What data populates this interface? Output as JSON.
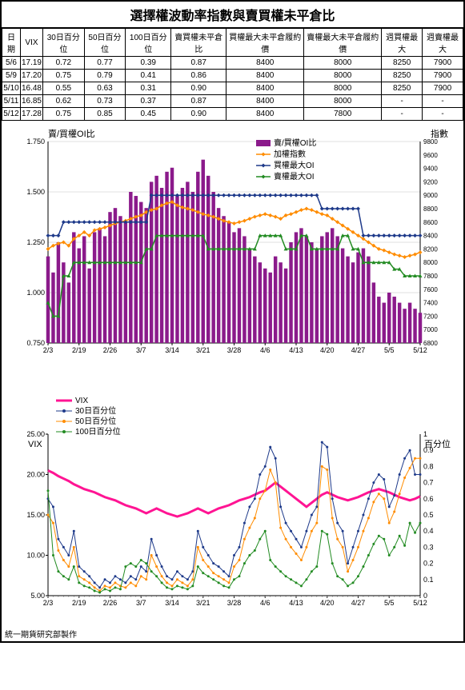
{
  "title": "選擇權波動率指數與賣買權未平倉比",
  "table": {
    "columns": [
      "日期",
      "VIX",
      "30日百分位",
      "50日百分位",
      "100日百分位",
      "賣買權未平倉比",
      "買權最大未平倉履約價",
      "賣權最大未平倉履約價",
      "週買權最大",
      "週賣權最大"
    ],
    "rows": [
      [
        "5/6",
        "17.19",
        "0.72",
        "0.77",
        "0.39",
        "0.87",
        "8400",
        "8000",
        "8250",
        "7900"
      ],
      [
        "5/9",
        "17.20",
        "0.75",
        "0.79",
        "0.41",
        "0.86",
        "8400",
        "8000",
        "8250",
        "7900"
      ],
      [
        "5/10",
        "16.48",
        "0.55",
        "0.63",
        "0.31",
        "0.90",
        "8400",
        "8000",
        "8250",
        "7900"
      ],
      [
        "5/11",
        "16.85",
        "0.62",
        "0.73",
        "0.37",
        "0.87",
        "8400",
        "8000",
        "-",
        "-"
      ],
      [
        "5/12",
        "17.28",
        "0.75",
        "0.85",
        "0.45",
        "0.90",
        "8400",
        "7800",
        "-",
        "-"
      ]
    ]
  },
  "chart1": {
    "type": "combo",
    "ylabel_left": "賣/買權OI比",
    "ylabel_right": "指數",
    "legend": [
      {
        "label": "賣/買權OI比",
        "color": "#8b1a8b",
        "type": "bar"
      },
      {
        "label": "加權指數",
        "color": "#ff8c00",
        "type": "line_marker"
      },
      {
        "label": "買權最大OI",
        "color": "#1e3a8a",
        "type": "line_marker"
      },
      {
        "label": "賣權最大OI",
        "color": "#228b22",
        "type": "line_marker"
      }
    ],
    "left_axis": {
      "min": 0.75,
      "max": 1.75,
      "ticks": [
        "0.750",
        "1.000",
        "1.250",
        "1.500",
        "1.750"
      ]
    },
    "right_axis": {
      "min": 6800,
      "max": 9800,
      "ticks": [
        "6800",
        "7000",
        "7200",
        "7400",
        "7600",
        "7800",
        "8000",
        "8200",
        "8400",
        "8600",
        "8800",
        "9000",
        "9200",
        "9400",
        "9600",
        "9800"
      ]
    },
    "x_labels": [
      "2/3",
      "2/19",
      "2/26",
      "3/7",
      "3/14",
      "3/21",
      "3/28",
      "4/6",
      "4/13",
      "4/20",
      "4/27",
      "5/5",
      "5/12"
    ],
    "bars": [
      1.18,
      1.1,
      1.25,
      1.15,
      1.05,
      1.3,
      1.22,
      1.28,
      1.12,
      1.3,
      1.32,
      1.28,
      1.4,
      1.42,
      1.38,
      1.35,
      1.5,
      1.48,
      1.45,
      1.42,
      1.55,
      1.58,
      1.52,
      1.6,
      1.62,
      1.48,
      1.52,
      1.55,
      1.5,
      1.6,
      1.66,
      1.58,
      1.5,
      1.42,
      1.38,
      1.35,
      1.3,
      1.32,
      1.28,
      1.22,
      1.18,
      1.15,
      1.12,
      1.1,
      1.18,
      1.15,
      1.12,
      1.25,
      1.3,
      1.32,
      1.28,
      1.25,
      1.22,
      1.28,
      1.3,
      1.32,
      1.28,
      1.22,
      1.18,
      1.15,
      1.2,
      1.22,
      1.18,
      1.05,
      0.98,
      0.95,
      1.0,
      0.98,
      0.95,
      0.92,
      0.95,
      0.92,
      0.9
    ],
    "line_index": [
      8200,
      8250,
      8280,
      8300,
      8250,
      8350,
      8400,
      8450,
      8400,
      8480,
      8500,
      8520,
      8550,
      8580,
      8600,
      8620,
      8650,
      8680,
      8700,
      8750,
      8780,
      8800,
      8850,
      8880,
      8900,
      8850,
      8820,
      8800,
      8780,
      8750,
      8720,
      8700,
      8680,
      8650,
      8620,
      8600,
      8580,
      8600,
      8620,
      8650,
      8680,
      8700,
      8720,
      8700,
      8680,
      8650,
      8700,
      8720,
      8750,
      8780,
      8800,
      8780,
      8750,
      8720,
      8700,
      8650,
      8600,
      8550,
      8500,
      8450,
      8400,
      8350,
      8300,
      8250,
      8200,
      8180,
      8150,
      8120,
      8100,
      8080,
      8100,
      8120,
      8150
    ],
    "line_call": [
      8400,
      8400,
      8400,
      8600,
      8600,
      8600,
      8600,
      8600,
      8600,
      8600,
      8600,
      8600,
      8600,
      8600,
      8600,
      8600,
      8600,
      8600,
      8600,
      8600,
      9000,
      9000,
      9000,
      9000,
      9000,
      9000,
      9000,
      9000,
      9000,
      9000,
      9000,
      9000,
      9000,
      9000,
      9000,
      9000,
      9000,
      9000,
      9000,
      9000,
      9000,
      9000,
      9000,
      9000,
      9000,
      9000,
      9000,
      9000,
      9000,
      9000,
      9000,
      9000,
      9000,
      8800,
      8800,
      8800,
      8800,
      8800,
      8800,
      8800,
      8800,
      8400,
      8400,
      8400,
      8400,
      8400,
      8400,
      8400,
      8400,
      8400,
      8400,
      8400,
      8400
    ],
    "line_put": [
      7400,
      7200,
      7200,
      7800,
      7800,
      8000,
      8000,
      8000,
      8000,
      8000,
      8000,
      8000,
      8000,
      8000,
      8000,
      8000,
      8000,
      8000,
      8000,
      8200,
      8200,
      8400,
      8400,
      8400,
      8400,
      8400,
      8400,
      8400,
      8400,
      8400,
      8400,
      8200,
      8200,
      8200,
      8200,
      8200,
      8200,
      8200,
      8200,
      8200,
      8200,
      8400,
      8400,
      8400,
      8400,
      8400,
      8200,
      8200,
      8200,
      8400,
      8400,
      8200,
      8200,
      8200,
      8200,
      8200,
      8200,
      8400,
      8400,
      8200,
      8200,
      8000,
      8000,
      8000,
      8000,
      8000,
      8000,
      7900,
      7900,
      7800,
      7800,
      7800,
      7800
    ],
    "background_color": "#ffffff",
    "grid_color": "#c0c0c0"
  },
  "chart2": {
    "type": "line",
    "ylabel_left": "VIX",
    "ylabel_right": "百分位",
    "legend": [
      {
        "label": "VIX",
        "color": "#ff1493",
        "type": "thick_line"
      },
      {
        "label": "30日百分位",
        "color": "#1e3a8a",
        "type": "line_dot"
      },
      {
        "label": "50日百分位",
        "color": "#ff8c00",
        "type": "line_dot"
      },
      {
        "label": "100日百分位",
        "color": "#228b22",
        "type": "line_dot"
      }
    ],
    "left_axis": {
      "min": 5.0,
      "max": 25.0,
      "ticks": [
        "5.00",
        "10.00",
        "15.00",
        "20.00",
        "25.00"
      ]
    },
    "right_axis": {
      "min": 0,
      "max": 1,
      "ticks": [
        "0",
        "0.1",
        "0.2",
        "0.3",
        "0.4",
        "0.5",
        "0.6",
        "0.7",
        "0.8",
        "0.9",
        "1"
      ]
    },
    "x_labels": [
      "2/3",
      "2/19",
      "2/26",
      "3/7",
      "3/14",
      "3/21",
      "3/28",
      "4/6",
      "4/13",
      "4/20",
      "4/27",
      "5/5",
      "5/12"
    ],
    "vix": [
      20.5,
      20.2,
      19.8,
      19.5,
      19.2,
      18.8,
      18.5,
      18.2,
      18.0,
      17.8,
      17.5,
      17.2,
      17.0,
      16.8,
      16.5,
      16.2,
      16.0,
      15.8,
      15.5,
      15.2,
      15.5,
      15.8,
      15.5,
      15.2,
      15.0,
      14.8,
      15.0,
      15.2,
      15.5,
      15.8,
      15.5,
      15.2,
      15.5,
      15.8,
      16.0,
      16.2,
      16.5,
      16.8,
      17.0,
      17.2,
      17.5,
      17.8,
      18.0,
      18.5,
      19.0,
      18.5,
      18.0,
      17.5,
      17.0,
      16.5,
      16.0,
      16.5,
      17.0,
      17.5,
      17.8,
      17.5,
      17.2,
      17.0,
      16.8,
      17.0,
      17.2,
      17.5,
      17.8,
      18.0,
      18.2,
      18.0,
      17.8,
      17.5,
      17.2,
      17.0,
      16.8,
      17.0,
      17.3
    ],
    "p30": [
      0.6,
      0.55,
      0.35,
      0.3,
      0.25,
      0.4,
      0.18,
      0.15,
      0.12,
      0.08,
      0.05,
      0.1,
      0.08,
      0.12,
      0.1,
      0.08,
      0.12,
      0.1,
      0.18,
      0.15,
      0.35,
      0.25,
      0.18,
      0.12,
      0.1,
      0.15,
      0.12,
      0.1,
      0.15,
      0.4,
      0.3,
      0.25,
      0.2,
      0.18,
      0.15,
      0.12,
      0.25,
      0.3,
      0.45,
      0.55,
      0.6,
      0.75,
      0.8,
      0.92,
      0.85,
      0.55,
      0.45,
      0.4,
      0.35,
      0.3,
      0.4,
      0.5,
      0.55,
      0.95,
      0.92,
      0.6,
      0.45,
      0.4,
      0.2,
      0.3,
      0.4,
      0.5,
      0.6,
      0.7,
      0.75,
      0.72,
      0.55,
      0.62,
      0.75,
      0.85,
      0.9,
      0.75,
      0.75
    ],
    "p50": [
      0.5,
      0.45,
      0.28,
      0.22,
      0.18,
      0.3,
      0.12,
      0.1,
      0.08,
      0.05,
      0.03,
      0.06,
      0.05,
      0.08,
      0.06,
      0.05,
      0.08,
      0.06,
      0.12,
      0.1,
      0.25,
      0.18,
      0.12,
      0.08,
      0.06,
      0.1,
      0.08,
      0.06,
      0.1,
      0.3,
      0.22,
      0.18,
      0.14,
      0.12,
      0.1,
      0.08,
      0.18,
      0.22,
      0.35,
      0.42,
      0.48,
      0.6,
      0.65,
      0.78,
      0.7,
      0.42,
      0.35,
      0.3,
      0.26,
      0.22,
      0.3,
      0.4,
      0.45,
      0.8,
      0.78,
      0.48,
      0.35,
      0.3,
      0.15,
      0.22,
      0.3,
      0.4,
      0.48,
      0.58,
      0.63,
      0.6,
      0.45,
      0.52,
      0.63,
      0.73,
      0.79,
      0.85,
      0.85
    ],
    "p100": [
      0.65,
      0.25,
      0.15,
      0.12,
      0.1,
      0.18,
      0.08,
      0.06,
      0.05,
      0.03,
      0.02,
      0.04,
      0.03,
      0.05,
      0.04,
      0.18,
      0.2,
      0.18,
      0.22,
      0.2,
      0.15,
      0.12,
      0.08,
      0.05,
      0.04,
      0.06,
      0.05,
      0.04,
      0.06,
      0.18,
      0.14,
      0.12,
      0.1,
      0.08,
      0.06,
      0.05,
      0.1,
      0.12,
      0.2,
      0.25,
      0.28,
      0.35,
      0.4,
      0.22,
      0.18,
      0.15,
      0.12,
      0.1,
      0.08,
      0.06,
      0.1,
      0.15,
      0.18,
      0.4,
      0.38,
      0.2,
      0.12,
      0.1,
      0.06,
      0.08,
      0.12,
      0.18,
      0.25,
      0.32,
      0.37,
      0.35,
      0.25,
      0.3,
      0.37,
      0.31,
      0.45,
      0.39,
      0.45
    ],
    "background_color": "#ffffff",
    "grid_color": "#c0c0c0"
  },
  "footer": "統一期貨研究部製作"
}
